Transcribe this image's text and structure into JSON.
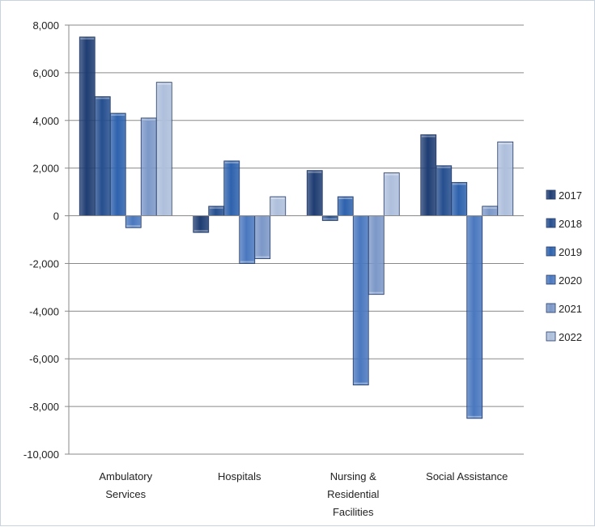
{
  "chart_data": {
    "type": "bar",
    "title": "",
    "xlabel": "",
    "ylabel": "",
    "ylim": [
      -10000,
      8000
    ],
    "y_ticks": [
      8000,
      6000,
      4000,
      2000,
      0,
      -2000,
      -4000,
      -6000,
      -8000,
      -10000
    ],
    "y_tick_labels": [
      "8,000",
      "6,000",
      "4,000",
      "2,000",
      "0",
      "-2,000",
      "-4,000",
      "-6,000",
      "-8,000",
      "-10,000"
    ],
    "grid": true,
    "legend_position": "right",
    "categories": [
      [
        "Ambulatory",
        "Services"
      ],
      [
        "Hospitals"
      ],
      [
        "Nursing &",
        "Residential",
        "Facilities"
      ],
      [
        "Social Assistance"
      ]
    ],
    "series": [
      {
        "name": "2017",
        "color": "#1f3d73",
        "values": [
          7500,
          -700,
          1900,
          3400
        ]
      },
      {
        "name": "2018",
        "color": "#264f8f",
        "values": [
          5000,
          400,
          -200,
          2100
        ]
      },
      {
        "name": "2019",
        "color": "#2e62ad",
        "values": [
          4300,
          2300,
          800,
          1400
        ]
      },
      {
        "name": "2020",
        "color": "#4a78bf",
        "values": [
          -500,
          -2000,
          -7100,
          -8500
        ]
      },
      {
        "name": "2021",
        "color": "#7c98c8",
        "values": [
          4100,
          -1800,
          -3300,
          400
        ]
      },
      {
        "name": "2022",
        "color": "#aebfdc",
        "values": [
          5600,
          800,
          1800,
          3100
        ]
      }
    ]
  }
}
